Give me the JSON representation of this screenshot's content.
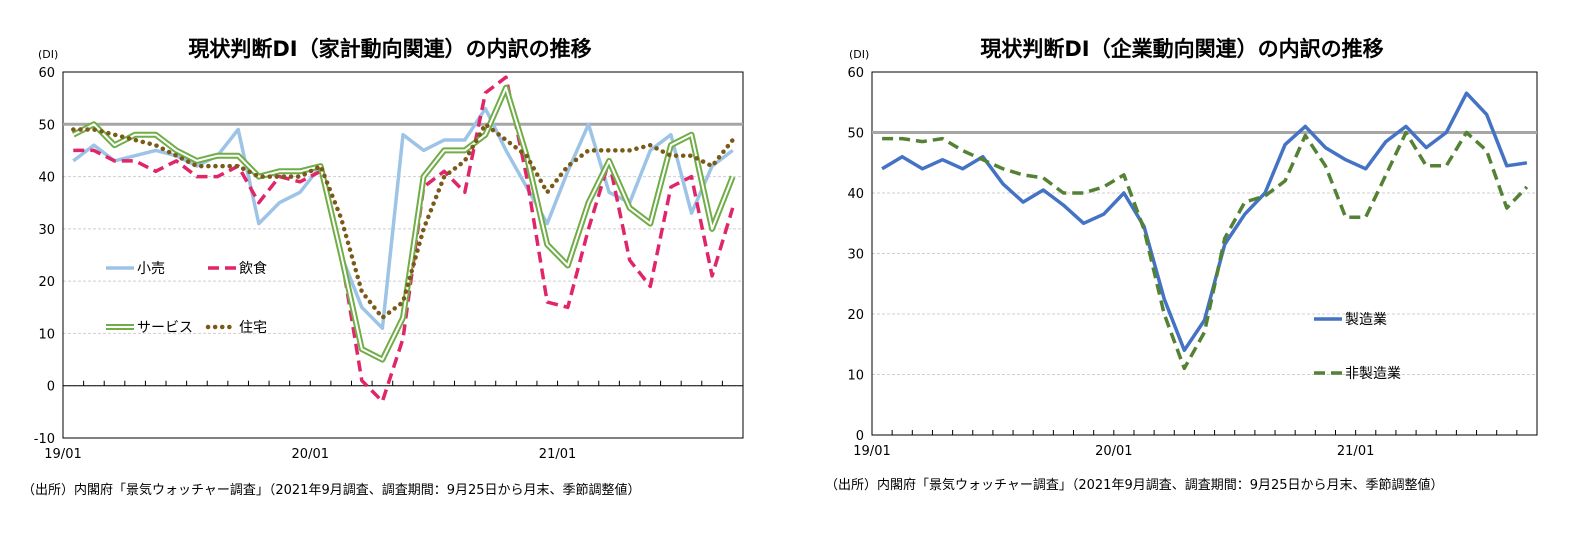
{
  "chart_data": [
    {
      "type": "line",
      "title": "現状判断DI（家計動向関連）の内訳の推移",
      "unit_label": "(DI)",
      "x": [
        "19/01",
        "19/02",
        "19/03",
        "19/04",
        "19/05",
        "19/06",
        "19/07",
        "19/08",
        "19/09",
        "19/10",
        "19/11",
        "19/12",
        "20/01",
        "20/02",
        "20/03",
        "20/04",
        "20/05",
        "20/06",
        "20/07",
        "20/08",
        "20/09",
        "20/10",
        "20/11",
        "20/12",
        "21/01",
        "21/02",
        "21/03",
        "21/04",
        "21/05",
        "21/06",
        "21/07",
        "21/08",
        "21/09"
      ],
      "x_tick_labels": [
        "19/01",
        "20/01",
        "21/01"
      ],
      "ylim": [
        -10,
        60
      ],
      "yticks": [
        -10,
        0,
        10,
        20,
        30,
        40,
        50,
        60
      ],
      "reference_line": 50,
      "grid": true,
      "series": [
        {
          "name": "小売",
          "color": "#9DC3E6",
          "style": "solid",
          "values": [
            43,
            46,
            43,
            44,
            45,
            44,
            42,
            44,
            49,
            31,
            35,
            37,
            42,
            25,
            15,
            11,
            48,
            45,
            47,
            47,
            53,
            45,
            38,
            31,
            41,
            50,
            37,
            35,
            45,
            48,
            33,
            42,
            45
          ]
        },
        {
          "name": "飲食",
          "color": "#E0256A",
          "style": "dashed",
          "values": [
            45,
            45,
            43,
            43,
            41,
            43,
            40,
            40,
            42,
            35,
            40,
            39,
            41,
            25,
            1,
            -3,
            9,
            38,
            41,
            37,
            56,
            59,
            40,
            16,
            15,
            30,
            43,
            24,
            19,
            38,
            40,
            21,
            34
          ]
        },
        {
          "name": "サービス",
          "color": "#70AD47",
          "style": "double",
          "values": [
            48,
            50,
            46,
            48,
            48,
            45,
            43,
            44,
            44,
            40,
            41,
            41,
            42,
            25,
            7,
            5,
            13,
            40,
            45,
            45,
            48,
            57,
            44,
            27,
            23,
            35,
            43,
            34,
            31,
            46,
            48,
            30,
            40
          ]
        },
        {
          "name": "住宅",
          "color": "#7B5A19",
          "style": "dotted",
          "values": [
            49,
            49,
            48,
            47,
            46,
            44,
            42,
            42,
            42,
            40,
            40,
            40,
            42,
            32,
            18,
            13,
            16,
            30,
            40,
            43,
            50,
            47,
            44,
            37,
            42,
            45,
            45,
            45,
            46,
            44,
            44,
            42,
            47
          ]
        }
      ],
      "legend": [
        "小売",
        "飲食",
        "サービス",
        "住宅"
      ]
    },
    {
      "type": "line",
      "title": "現状判断DI（企業動向関連）の内訳の推移",
      "unit_label": "(DI)",
      "x": [
        "19/01",
        "19/02",
        "19/03",
        "19/04",
        "19/05",
        "19/06",
        "19/07",
        "19/08",
        "19/09",
        "19/10",
        "19/11",
        "19/12",
        "20/01",
        "20/02",
        "20/03",
        "20/04",
        "20/05",
        "20/06",
        "20/07",
        "20/08",
        "20/09",
        "20/10",
        "20/11",
        "20/12",
        "21/01",
        "21/02",
        "21/03",
        "21/04",
        "21/05",
        "21/06",
        "21/07",
        "21/08",
        "21/09"
      ],
      "x_tick_labels": [
        "19/01",
        "20/01",
        "21/01"
      ],
      "ylim": [
        0,
        60
      ],
      "yticks": [
        0,
        10,
        20,
        30,
        40,
        50,
        60
      ],
      "reference_line": 50,
      "grid": true,
      "series": [
        {
          "name": "製造業",
          "color": "#4472C4",
          "style": "solid",
          "values": [
            44,
            46,
            44,
            45.5,
            44,
            46,
            41.5,
            38.5,
            40.5,
            38,
            35,
            36.5,
            40,
            34.5,
            22.5,
            14,
            19,
            31.5,
            36.5,
            40,
            48,
            51,
            47.5,
            45.5,
            44,
            48.5,
            51,
            47.5,
            50,
            56.5,
            53,
            44.5,
            45
          ]
        },
        {
          "name": "非製造業",
          "color": "#548235",
          "style": "dashed",
          "values": [
            49,
            49,
            48.5,
            49,
            47,
            45.5,
            44,
            43,
            42.5,
            40,
            40,
            41,
            43,
            34,
            20,
            11,
            17,
            32.5,
            38.5,
            39.5,
            42,
            49.5,
            44.5,
            36,
            36,
            43,
            50,
            44.5,
            44.5,
            50,
            47,
            37.5,
            41
          ]
        }
      ],
      "legend": [
        "製造業",
        "非製造業"
      ]
    }
  ],
  "sources": [
    "（出所）内閣府「景気ウォッチャー調査」（2021年9月調査、調査期間：9月25日から月末、季節調整値）",
    "（出所）内閣府「景気ウォッチャー調査」（2021年9月調査、調査期間：9月25日から月末、季節調整値）"
  ]
}
